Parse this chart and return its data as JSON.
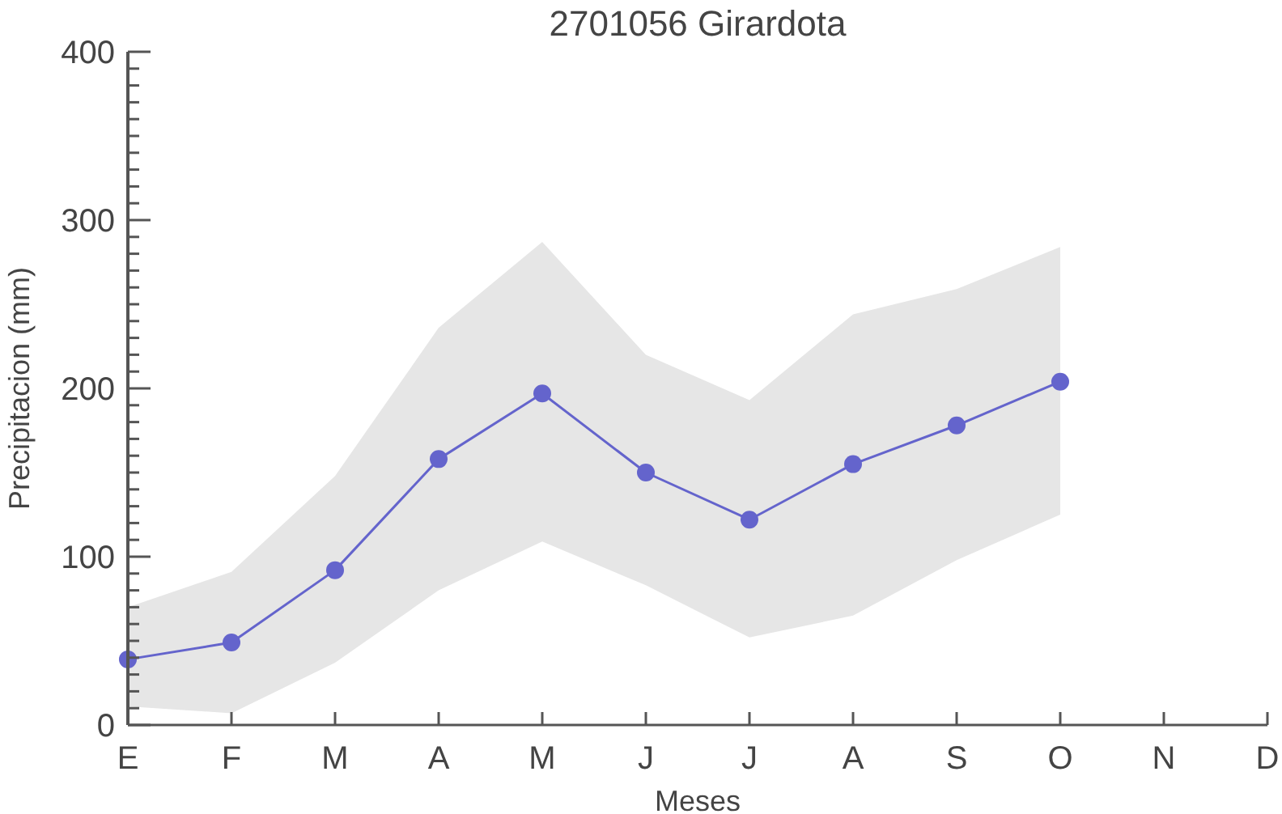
{
  "chart_data": {
    "type": "line",
    "title": "2701056 Girardota",
    "xlabel": "Meses",
    "ylabel": "Precipitacion (mm)",
    "categories": [
      "E",
      "F",
      "M",
      "A",
      "M",
      "J",
      "J",
      "A",
      "S",
      "O",
      "N",
      "D"
    ],
    "series": [
      {
        "color": "#6464cc",
        "values": [
          39,
          49,
          92,
          158,
          197,
          150,
          122,
          155,
          178,
          204,
          null,
          null
        ],
        "lower": [
          11,
          7,
          37,
          80,
          109,
          83,
          52,
          65,
          98,
          125,
          null,
          null
        ],
        "upper": [
          70,
          91,
          148,
          236,
          287,
          220,
          193,
          244,
          259,
          284,
          null,
          null
        ]
      }
    ],
    "ylim": [
      0,
      400
    ],
    "yticks": [
      0,
      {
        "value": 10,
        "label": null
      },
      {
        "value": 20,
        "label": null
      },
      {
        "value": 30,
        "label": null
      },
      {
        "value": 40,
        "label": null
      },
      {
        "value": 50,
        "label": null
      },
      {
        "value": 60,
        "label": null
      },
      {
        "value": 70,
        "label": null
      },
      {
        "value": 80,
        "label": null
      },
      {
        "value": 90,
        "label": null
      },
      100,
      {
        "value": 110,
        "label": null
      },
      {
        "value": 120,
        "label": null
      },
      {
        "value": 130,
        "label": null
      },
      {
        "value": 140,
        "label": null
      },
      {
        "value": 150,
        "label": null
      },
      {
        "value": 160,
        "label": null
      },
      {
        "value": 170,
        "label": null
      },
      {
        "value": 180,
        "label": null
      },
      {
        "value": 190,
        "label": null
      },
      200,
      {
        "value": 210,
        "label": null
      },
      {
        "value": 220,
        "label": null
      },
      {
        "value": 230,
        "label": null
      },
      {
        "value": 240,
        "label": null
      },
      {
        "value": 250,
        "label": null
      },
      {
        "value": 260,
        "label": null
      },
      {
        "value": 270,
        "label": null
      },
      {
        "value": 280,
        "label": null
      },
      {
        "value": 290,
        "label": null
      },
      300,
      {
        "value": 310,
        "label": null
      },
      {
        "value": 320,
        "label": null
      },
      {
        "value": 330,
        "label": null
      },
      {
        "value": 340,
        "label": null
      },
      {
        "value": 350,
        "label": null
      },
      {
        "value": 360,
        "label": null
      },
      {
        "value": 370,
        "label": null
      },
      {
        "value": 380,
        "label": null
      },
      {
        "value": 390,
        "label": null
      },
      400
    ],
    "grid": false,
    "marker": "circle",
    "line_style": "solid"
  }
}
